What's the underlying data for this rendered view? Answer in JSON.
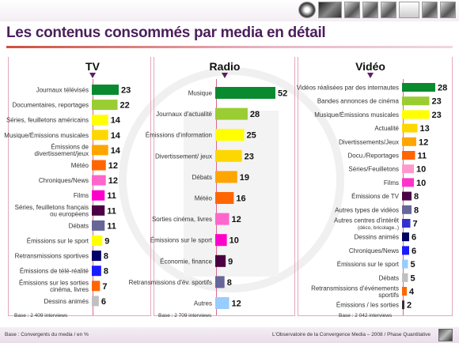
{
  "title": "Les contenus consommés par media en détail",
  "footer": {
    "left": "Base : Convergents du media / en %",
    "right": "L'Observatoire de la Convergence Media – 2008 / Phase Quantitative"
  },
  "chart_data": [
    {
      "type": "bar",
      "orientation": "horizontal",
      "title": "TV",
      "base_note": "Base : 2 409 interviews",
      "categories": [
        [
          "Journaux télévisés"
        ],
        [
          "Documentaires, reportages"
        ],
        [
          "Séries, feuilletons américains"
        ],
        [
          "Musique/Émissions musicales"
        ],
        [
          "Émissions de",
          "divertissement/jeux"
        ],
        [
          "Météo"
        ],
        [
          "Chroniques/News"
        ],
        [
          "Films"
        ],
        [
          "Séries, feuilletons français",
          "ou européens"
        ],
        [
          "Débats"
        ],
        [
          "Émissions sur le sport"
        ],
        [
          "Retransmissions sportives"
        ],
        [
          "Émissions de télé-réalité"
        ],
        [
          "Émissions sur les sorties",
          "cinéma, livres"
        ],
        [
          "Dessins animés"
        ]
      ],
      "values": [
        23,
        22,
        14,
        14,
        14,
        12,
        12,
        11,
        11,
        11,
        9,
        8,
        8,
        7,
        6
      ],
      "colors": [
        "#0a8a2f",
        "#9acd32",
        "#ffff00",
        "#ffd700",
        "#ffa500",
        "#ff6600",
        "#ff66cc",
        "#ff00cc",
        "#4b0044",
        "#666699",
        "#ffff00",
        "#000066",
        "#1a1aff",
        "#ff6600",
        "#c0c0c0"
      ]
    },
    {
      "type": "bar",
      "orientation": "horizontal",
      "title": "Radio",
      "base_note": "Base : 2 709 interviews",
      "categories": [
        [
          "Musique"
        ],
        [
          "Journaux d'actualité"
        ],
        [
          "Émissions d'information"
        ],
        [
          "Divertissement/ jeux"
        ],
        [
          "Débats"
        ],
        [
          "Météo"
        ],
        [
          "Sorties cinéma, livres"
        ],
        [
          "Émissions sur le sport"
        ],
        [
          "Économie, finance"
        ],
        [
          "Retransmissions d'év. sportifs"
        ],
        [
          "Autres"
        ]
      ],
      "values": [
        52,
        28,
        25,
        23,
        19,
        16,
        12,
        10,
        9,
        8,
        12
      ],
      "colors": [
        "#0a8a2f",
        "#9acd32",
        "#ffff00",
        "#ffd700",
        "#ffa500",
        "#ff6600",
        "#ff66cc",
        "#ff00cc",
        "#4b0044",
        "#666699",
        "#99ccff"
      ]
    },
    {
      "type": "bar",
      "orientation": "horizontal",
      "title": "Vidéo",
      "base_note": "Base : 2 042 interviews",
      "categories": [
        [
          "Vidéos réalisées par des internautes"
        ],
        [
          "Bandes annonces de cinéma"
        ],
        [
          "Musique/Émissions musicales"
        ],
        [
          "Actualité"
        ],
        [
          "Divertissements/Jeux"
        ],
        [
          "Docu./Reportages"
        ],
        [
          "Séries/Feuilletons"
        ],
        [
          "Films"
        ],
        [
          "Émissions de TV"
        ],
        [
          "Autres types de vidéos"
        ],
        [
          "Autres centres d'intérêt",
          "(déco, bricolage..)"
        ],
        [
          "Dessins animés"
        ],
        [
          "Chroniques/News"
        ],
        [
          "Émissions sur le sport"
        ],
        [
          "Débats"
        ],
        [
          "Retransmissions d'événements",
          "sportifs"
        ],
        [
          "Émissions / les sorties"
        ]
      ],
      "values": [
        28,
        23,
        23,
        13,
        12,
        11,
        10,
        10,
        8,
        8,
        7,
        6,
        6,
        5,
        5,
        4,
        2
      ],
      "colors": [
        "#0a8a2f",
        "#9acd32",
        "#ffff00",
        "#ffd700",
        "#ffa500",
        "#ff6600",
        "#ff99cc",
        "#ff33cc",
        "#4b0044",
        "#666699",
        "#3333cc",
        "#000066",
        "#1a1aff",
        "#99ccff",
        "#c0c0c0",
        "#ff6600",
        "#333333"
      ]
    }
  ]
}
